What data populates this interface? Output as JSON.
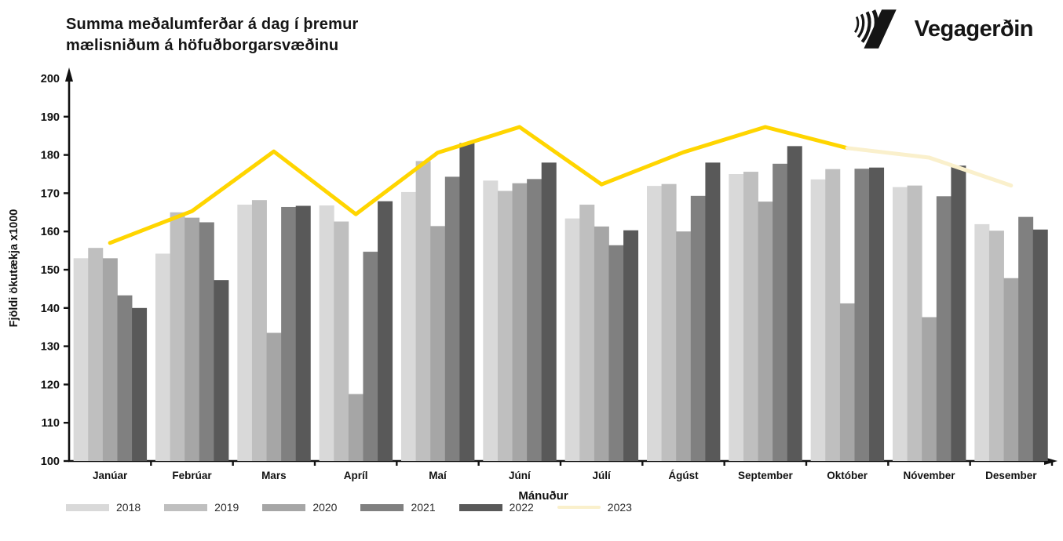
{
  "header": {
    "title_line1": "Summa meðalumferðar á dag í þremur",
    "title_line2": "mælisniðum á höfuðborgarsvæðinu",
    "logo_text": "Vegagerðin"
  },
  "chart_data": {
    "type": "bar",
    "title": "Summa meðalumferðar á dag í þremur mælisniðum á höfuðborgarsvæðinu",
    "xlabel": "Mánuður",
    "ylabel": "Fjöldi ökutækja x1000",
    "ylim": [
      100,
      200
    ],
    "ytick_step": 10,
    "grid": false,
    "legend_position": "bottom-left",
    "categories": [
      "Janúar",
      "Febrúar",
      "Mars",
      "Apríl",
      "Maí",
      "Júní",
      "Júlí",
      "Ágúst",
      "September",
      "Október",
      "Nóvember",
      "Desember"
    ],
    "series": [
      {
        "name": "2018",
        "type": "bar",
        "color": "#d9d9d9",
        "values": [
          153.0,
          154.2,
          167.0,
          166.8,
          170.3,
          173.3,
          163.4,
          171.9,
          175.0,
          173.6,
          171.6,
          161.9
        ]
      },
      {
        "name": "2019",
        "type": "bar",
        "color": "#bfbfbf",
        "values": [
          155.7,
          165.0,
          168.2,
          162.6,
          178.4,
          170.6,
          167.0,
          172.4,
          175.6,
          176.3,
          172.0,
          160.2
        ]
      },
      {
        "name": "2020",
        "type": "bar",
        "color": "#a6a6a6",
        "values": [
          153.0,
          163.6,
          133.5,
          117.5,
          161.4,
          172.6,
          161.3,
          160.0,
          167.8,
          141.2,
          137.6,
          147.8
        ]
      },
      {
        "name": "2021",
        "type": "bar",
        "color": "#808080",
        "values": [
          143.3,
          162.4,
          166.4,
          154.7,
          174.3,
          173.7,
          156.4,
          169.3,
          177.7,
          176.4,
          169.2,
          163.8
        ]
      },
      {
        "name": "2022",
        "type": "bar",
        "color": "#595959",
        "values": [
          140.0,
          147.3,
          166.7,
          167.9,
          183.1,
          178.0,
          160.3,
          178.0,
          182.3,
          176.7,
          177.2,
          160.5
        ]
      },
      {
        "name": "2023",
        "type": "line",
        "color": "#ffd500",
        "color_faded": "#faf0cc",
        "fade_from_index": 9,
        "values": [
          157.0,
          165.3,
          180.9,
          164.5,
          180.6,
          187.3,
          172.3,
          180.7,
          187.3,
          181.8,
          179.3,
          172.0
        ]
      }
    ]
  }
}
